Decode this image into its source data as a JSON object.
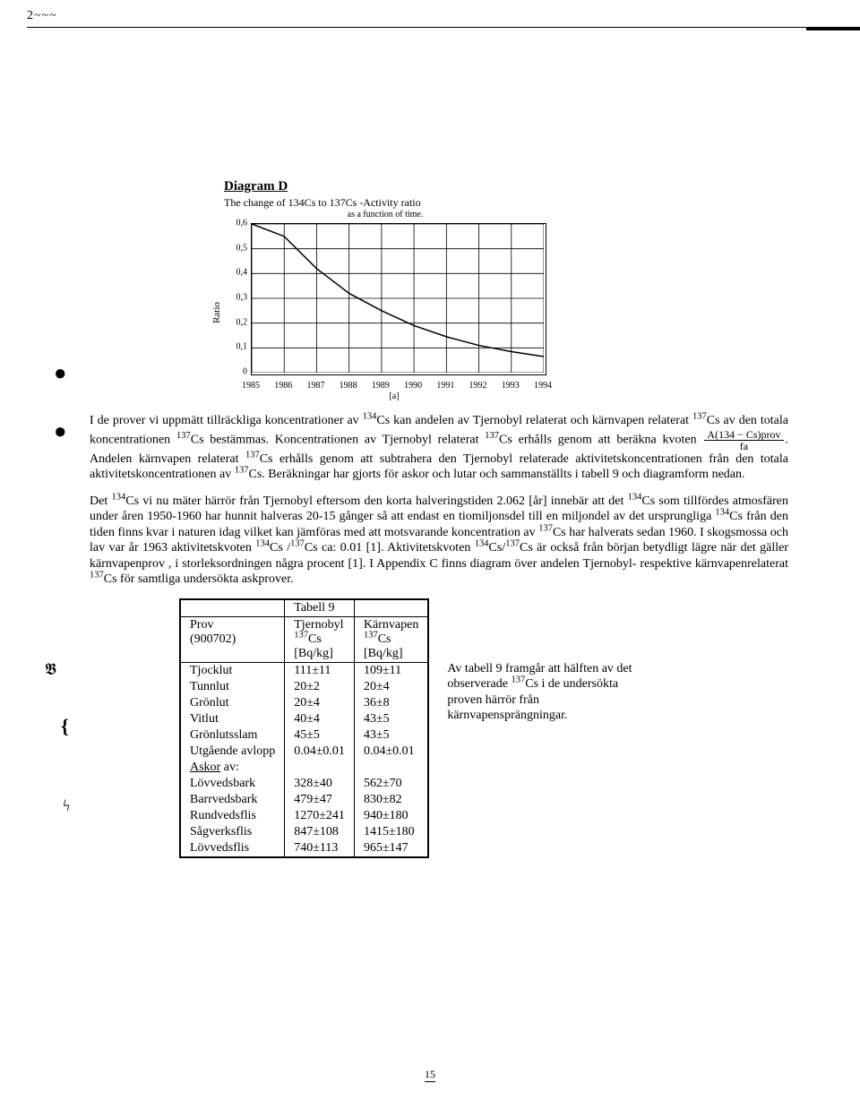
{
  "scanmark": "2~~~",
  "diagram": {
    "title": "Diagram D",
    "subtitle": "The change of 134Cs to 137Cs -Activity ratio",
    "subsub": "as a function of time.",
    "ylabel": "Ratio",
    "xlabel": "[a]",
    "yticks": [
      "0",
      "0,1",
      "0,2",
      "0,3",
      "0,4",
      "0,5",
      "0,6"
    ],
    "xticks": [
      "1985",
      "1986",
      "1987",
      "1988",
      "1989",
      "1990",
      "1991",
      "1992",
      "1993",
      "1994"
    ],
    "ylim": [
      0,
      0.6
    ],
    "xlim": [
      1985,
      1994
    ],
    "curve": [
      {
        "x": 1985,
        "y": 0.6
      },
      {
        "x": 1986,
        "y": 0.55
      },
      {
        "x": 1987,
        "y": 0.42
      },
      {
        "x": 1988,
        "y": 0.32
      },
      {
        "x": 1989,
        "y": 0.25
      },
      {
        "x": 1990,
        "y": 0.19
      },
      {
        "x": 1991,
        "y": 0.145
      },
      {
        "x": 1992,
        "y": 0.11
      },
      {
        "x": 1993,
        "y": 0.085
      },
      {
        "x": 1994,
        "y": 0.065
      }
    ],
    "grid_color": "#000",
    "line_color": "#000",
    "line_width": 1.5
  },
  "para1_pre": "I de prover vi uppmätt tillräckliga koncentrationer av ",
  "para1_seg1": "Cs kan andelen av Tjernobyl relaterat och kärnvapen relaterat ",
  "para1_seg2": "Cs av den totala koncentrationen ",
  "para1_seg3": "Cs bestämmas. Koncentrationen av Tjernobyl relaterat ",
  "para1_seg4": "Cs erhålls genom att beräkna kvoten ",
  "frac_num": "A(134 − Cs)prov",
  "frac_den": "fa",
  "para1_seg5": ". Andelen kärnvapen relaterat ",
  "para1_seg6": "Cs erhålls genom att subtrahera den Tjernobyl relaterade aktivitetskoncentrationen från den totala aktivitetskoncentrationen av ",
  "para1_seg7": "Cs. Beräkningar har gjorts för askor och lutar och sammanställts i tabell 9 och diagramform nedan.",
  "para2_pre": "Det ",
  "para2_seg1": "Cs vi nu mäter härrör från Tjernobyl eftersom den korta halveringstiden 2.062 [år] innebär att det ",
  "para2_seg2": "Cs som tillfördes atmosfären under åren 1950-1960 har hunnit halveras 20-15 gånger så att endast en tiomiljonsdel till en miljondel av det ursprungliga ",
  "para2_seg3": "Cs från den tiden finns kvar i naturen idag vilket kan jämföras med att motsvarande koncentration av ",
  "para2_seg4": "Cs har halverats sedan 1960. I skogsmossa och lav var år 1963 aktivitetskvoten ",
  "para2_seg5": "Cs /",
  "para2_seg6": "Cs ca: 0.01 [1]. Aktivitetskvoten ",
  "para2_seg7": "Cs/",
  "para2_seg8": "Cs är också från början betydligt lägre när det gäller kärnvapenprov , i storleksordningen några procent [1]. I Appendix C finns diagram över andelen Tjernobyl- respektive kärnvapenrelaterat ",
  "para2_seg9": "Cs för samtliga undersökta askprover.",
  "iso134": "134",
  "iso137": "137",
  "table": {
    "caption": "Tabell 9",
    "col0_head1": "Prov",
    "col0_head2": "(900702)",
    "col1_head1": "Tjernobyl",
    "col1_head2_sup": "137",
    "col1_head2": "Cs",
    "col1_head3": "[Bq/kg]",
    "col2_head1": "Kärnvapen",
    "col2_head2_sup": "137",
    "col2_head2": "Cs",
    "col2_head3": "[Bq/kg]",
    "rows1": [
      [
        "Tjocklut",
        "111±11",
        "109±11"
      ],
      [
        "Tunnlut",
        "20±2",
        "20±4"
      ],
      [
        "Grönlut",
        "20±4",
        "36±8"
      ],
      [
        "Vitlut",
        "40±4",
        "43±5"
      ],
      [
        "Grönlutsslam",
        "45±5",
        "43±5"
      ],
      [
        "Utgående avlopp",
        "0.04±0.01",
        "0.04±0.01"
      ]
    ],
    "section_label_u": "Askor",
    "section_label_rest": " av:",
    "rows2": [
      [
        "Lövvedsbark",
        "328±40",
        "562±70"
      ],
      [
        "Barrvedsbark",
        "479±47",
        "830±82"
      ],
      [
        "Rundvedsflis",
        "1270±241",
        "940±180"
      ],
      [
        "Sågverksflis",
        "847±108",
        "1415±180"
      ],
      [
        "Lövvedsflis",
        "740±113",
        "965±147"
      ]
    ]
  },
  "sidenote_pre": "Av tabell 9 framgår att hälften av det observerade ",
  "sidenote_post": "Cs i de undersökta proven härrör från kärnvapensprängningar.",
  "pagenum": "15"
}
